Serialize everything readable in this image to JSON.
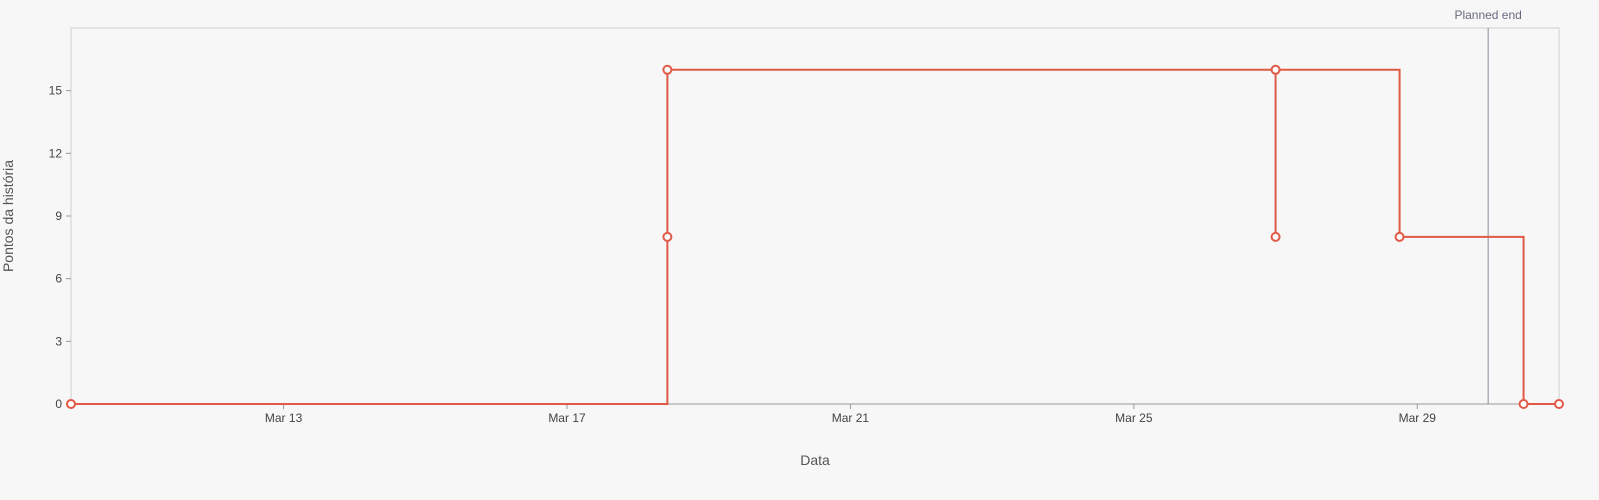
{
  "chart_data": {
    "type": "line",
    "step": true,
    "xlabel": "Data",
    "ylabel": "Pontos da história",
    "x_axis_type": "date",
    "xlim": [
      "2024-03-10",
      "2024-03-31"
    ],
    "ylim": [
      0,
      18
    ],
    "x_ticks": [
      "2024-03-13",
      "2024-03-17",
      "2024-03-21",
      "2024-03-25",
      "2024-03-29"
    ],
    "x_tick_labels": [
      "Mar 13",
      "Mar 17",
      "Mar 21",
      "Mar 25",
      "Mar 29"
    ],
    "y_ticks": [
      0,
      3,
      6,
      9,
      12,
      15
    ],
    "y_tick_labels": [
      "0",
      "3",
      "6",
      "9",
      "12",
      "15"
    ],
    "grid": false,
    "series": [
      {
        "color": "#e05a47",
        "points": [
          {
            "x": "2024-03-10",
            "y": 0,
            "marker": true
          },
          {
            "x": "2024-03-18T10:00",
            "y": 0,
            "marker": false
          },
          {
            "x": "2024-03-18T10:00",
            "y": 8,
            "marker": true
          },
          {
            "x": "2024-03-18T10:00",
            "y": 16,
            "marker": true
          },
          {
            "x": "2024-03-27T00:00",
            "y": 16,
            "marker": true
          },
          {
            "x": "2024-03-27T00:00",
            "y": 8,
            "marker": true
          },
          {
            "x": "2024-03-27T00:00",
            "y": 16,
            "marker": false
          },
          {
            "x": "2024-03-28T18:00",
            "y": 16,
            "marker": false
          },
          {
            "x": "2024-03-28T18:00",
            "y": 8,
            "marker": true
          },
          {
            "x": "2024-03-30T12:00",
            "y": 8,
            "marker": false
          },
          {
            "x": "2024-03-30T12:00",
            "y": 0,
            "marker": true
          },
          {
            "x": "2024-03-31",
            "y": 0,
            "marker": true
          }
        ]
      }
    ],
    "annotations": [
      {
        "type": "vline",
        "x": "2024-03-30T00:00",
        "label": "Planned end",
        "color": "#8a8ea0"
      }
    ]
  }
}
